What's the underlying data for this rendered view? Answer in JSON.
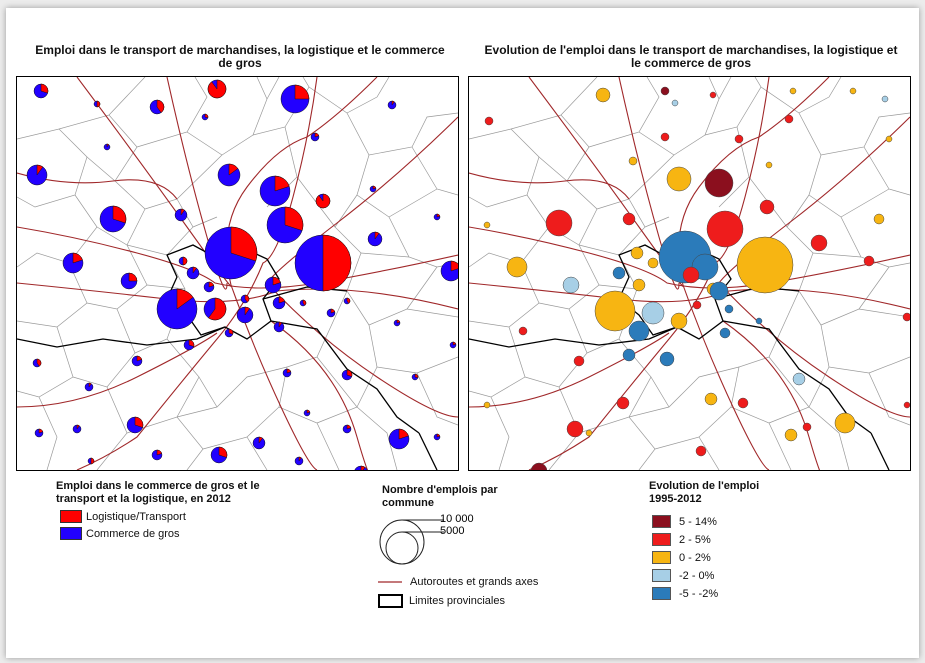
{
  "maps": {
    "left": {
      "title_line1": "Emploi dans le transport de marchandises, la logistique et le commerce",
      "title_line2": "de gros"
    },
    "right": {
      "title_line1": "Evolution de l'emploi dans le transport de marchandises, la logistique et",
      "title_line2": "le commerce de gros"
    }
  },
  "legend_composition": {
    "title_line1": "Emploi dans le commerce de gros et le",
    "title_line2": "transport et la logistique, en 2012",
    "items": [
      {
        "label": "Logistique/Transport",
        "color": "#ff0000"
      },
      {
        "label": "Commerce de gros",
        "color": "#2200ff"
      }
    ]
  },
  "legend_size": {
    "title_line1": "Nombre d'emplois par",
    "title_line2": "commune",
    "big_label": "10 000",
    "small_label": "5000",
    "roads_label": "Autoroutes et grands axes",
    "provinces_label": "Limites provinciales"
  },
  "legend_evolution": {
    "title_line1": "Evolution de l'emploi",
    "title_line2": "1995-2012",
    "classes": [
      {
        "label": "5 - 14%",
        "color": "#8b0f1e"
      },
      {
        "label": "2 - 5%",
        "color": "#ee1c1c"
      },
      {
        "label": "0 - 2%",
        "color": "#f7b512"
      },
      {
        "label": "-2 - 0%",
        "color": "#a7cfe6"
      },
      {
        "label": "-5 - -2%",
        "color": "#2b7bba"
      }
    ]
  },
  "colors": {
    "road": "#a0282a",
    "commune_border": "#9a9a9a",
    "province_border": "#000000",
    "logistique": "#ff0000",
    "commerce": "#2200ff"
  }
}
